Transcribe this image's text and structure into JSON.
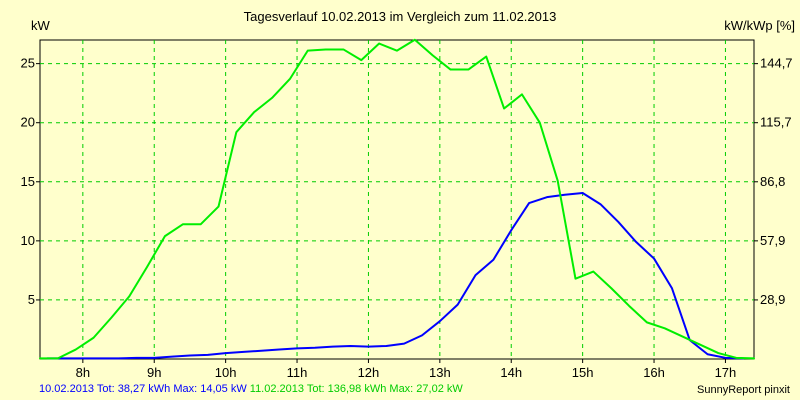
{
  "chart_data": {
    "type": "line",
    "title": "Tagesverlauf 10.02.2013 im Vergleich zum 11.02.2013",
    "ylabel_left": "kW",
    "ylabel_right": "kW/kWp [%]",
    "x_ticks": [
      "8h",
      "9h",
      "10h",
      "11h",
      "12h",
      "13h",
      "14h",
      "15h",
      "16h",
      "17h"
    ],
    "x_range": [
      7.4,
      17.4
    ],
    "ylim_left": [
      0,
      27
    ],
    "y_ticks_left": [
      5,
      10,
      15,
      20,
      25
    ],
    "y_ticks_right": [
      "28,9",
      "57,9",
      "86,8",
      "115,7",
      "144,7"
    ],
    "grid": true,
    "colors": {
      "background": "#FFFFCC",
      "plot_background": "#FFFFCC",
      "grid": "#00CC00",
      "series_blue": "#0000FF",
      "series_green": "#00EE00"
    },
    "series": [
      {
        "name": "10.02.2013",
        "color": "#0000FF",
        "x": [
          7.5,
          7.75,
          8.0,
          8.25,
          8.5,
          8.75,
          9.0,
          9.25,
          9.5,
          9.75,
          10.0,
          10.25,
          10.5,
          10.75,
          11.0,
          11.25,
          11.5,
          11.75,
          12.0,
          12.25,
          12.5,
          12.75,
          13.0,
          13.25,
          13.5,
          13.75,
          14.0,
          14.25,
          14.5,
          14.75,
          15.0,
          15.25,
          15.5,
          15.75,
          16.0,
          16.25,
          16.5,
          16.75,
          17.0,
          17.25
        ],
        "values": [
          0.05,
          0.05,
          0.05,
          0.05,
          0.05,
          0.1,
          0.1,
          0.2,
          0.3,
          0.35,
          0.5,
          0.6,
          0.7,
          0.8,
          0.9,
          0.95,
          1.05,
          1.1,
          1.05,
          1.1,
          1.3,
          2.0,
          3.2,
          4.6,
          7.1,
          8.4,
          10.9,
          13.2,
          13.7,
          13.9,
          14.05,
          13.1,
          11.6,
          9.9,
          8.5,
          6.0,
          1.6,
          0.4,
          0.1,
          0.05
        ]
      },
      {
        "name": "11.02.2013",
        "color": "#00EE00",
        "x": [
          7.4,
          7.65,
          7.9,
          8.15,
          8.4,
          8.65,
          8.9,
          9.15,
          9.4,
          9.65,
          9.9,
          10.15,
          10.4,
          10.65,
          10.9,
          11.15,
          11.4,
          11.65,
          11.9,
          12.15,
          12.4,
          12.65,
          12.9,
          13.15,
          13.4,
          13.65,
          13.9,
          14.15,
          14.4,
          14.65,
          14.9,
          15.15,
          15.4,
          15.65,
          15.9,
          16.15,
          16.4,
          16.65,
          16.9,
          17.15,
          17.4
        ],
        "values": [
          0.05,
          0.05,
          0.8,
          1.8,
          3.5,
          5.3,
          7.8,
          10.4,
          11.4,
          11.4,
          12.9,
          19.2,
          20.9,
          22.1,
          23.7,
          26.1,
          26.2,
          26.2,
          25.3,
          26.7,
          26.1,
          27.02,
          25.7,
          24.5,
          24.5,
          25.6,
          21.2,
          22.4,
          20.0,
          15.1,
          6.8,
          7.4,
          6.0,
          4.5,
          3.1,
          2.6,
          1.9,
          1.2,
          0.5,
          0.1,
          0.05
        ]
      }
    ]
  },
  "footer": {
    "blue_label": "10.02.2013 Tot: 38,27 kWh Max: 14,05 kW",
    "green_label": "11.02.2013 Tot: 136,98 kWh Max: 27,02 kW",
    "brand": "SunnyReport pinxit"
  }
}
